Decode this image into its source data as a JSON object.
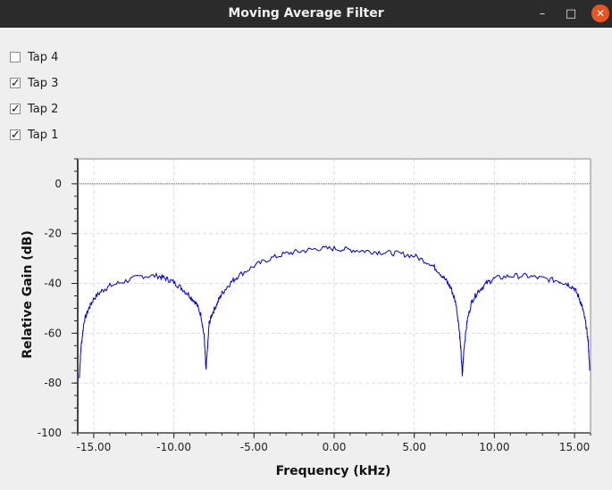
{
  "window": {
    "title": "Moving Average Filter",
    "minimize_glyph": "–",
    "maximize_glyph": "□",
    "close_glyph": "✕"
  },
  "checkboxes": [
    {
      "label": "Tap 4",
      "checked": false
    },
    {
      "label": "Tap 3",
      "checked": true
    },
    {
      "label": "Tap 2",
      "checked": true
    },
    {
      "label": "Tap 1",
      "checked": true
    }
  ],
  "chart_data": {
    "type": "line",
    "xlabel": "Frequency (kHz)",
    "ylabel": "Relative Gain (dB)",
    "xlim": [
      -16,
      16
    ],
    "ylim": [
      -100,
      10
    ],
    "x_ticks": [
      "-15.00",
      "-10.00",
      "-5.00",
      "0.00",
      "5.00",
      "10.00",
      "15.00"
    ],
    "y_ticks": [
      "0",
      "-20",
      "-40",
      "-60",
      "-80",
      "-100"
    ],
    "grid": true,
    "colors": {
      "trace": "#0000cc",
      "reference": "#007777",
      "grid": "#dddddd"
    },
    "series": [
      {
        "x": [
          -15.9,
          -15.8,
          -15.6,
          -15.3,
          -15.0,
          -14.5,
          -14.0,
          -13.0,
          -12.0,
          -11.0,
          -10.5,
          -10.0,
          -9.5,
          -9.0,
          -8.6,
          -8.3,
          -8.1,
          -8.0,
          -7.9,
          -7.8,
          -7.6,
          -7.3,
          -7.0,
          -6.5,
          -6.0,
          -5.0,
          -4.0,
          -3.0,
          -2.0,
          -1.0,
          0.0,
          1.0,
          2.0,
          3.0,
          4.0,
          5.0,
          6.0,
          6.5,
          7.0,
          7.3,
          7.6,
          7.8,
          7.9,
          8.0,
          8.1,
          8.3,
          8.6,
          9.0,
          9.5,
          10.0,
          11.0,
          12.0,
          13.0,
          14.0,
          14.5,
          15.0,
          15.3,
          15.5,
          15.7,
          15.85,
          15.95
        ],
        "y": [
          -78,
          -66,
          -55,
          -50,
          -46,
          -43,
          -41,
          -39,
          -37,
          -37,
          -38,
          -39.5,
          -42,
          -45,
          -48,
          -53,
          -62,
          -75,
          -66,
          -56,
          -52,
          -48,
          -44,
          -40,
          -37,
          -33,
          -30,
          -28,
          -27,
          -26,
          -26,
          -26.5,
          -27,
          -27.5,
          -28,
          -29,
          -32,
          -35,
          -39,
          -42,
          -48,
          -58,
          -66,
          -77,
          -66,
          -55,
          -47,
          -43,
          -40,
          -38,
          -37,
          -37,
          -38,
          -39,
          -40,
          -42,
          -46,
          -50,
          -56,
          -63,
          -75
        ]
      },
      {
        "name": "",
        "x": [
          -16,
          16
        ],
        "y": [
          0,
          0
        ]
      }
    ]
  }
}
